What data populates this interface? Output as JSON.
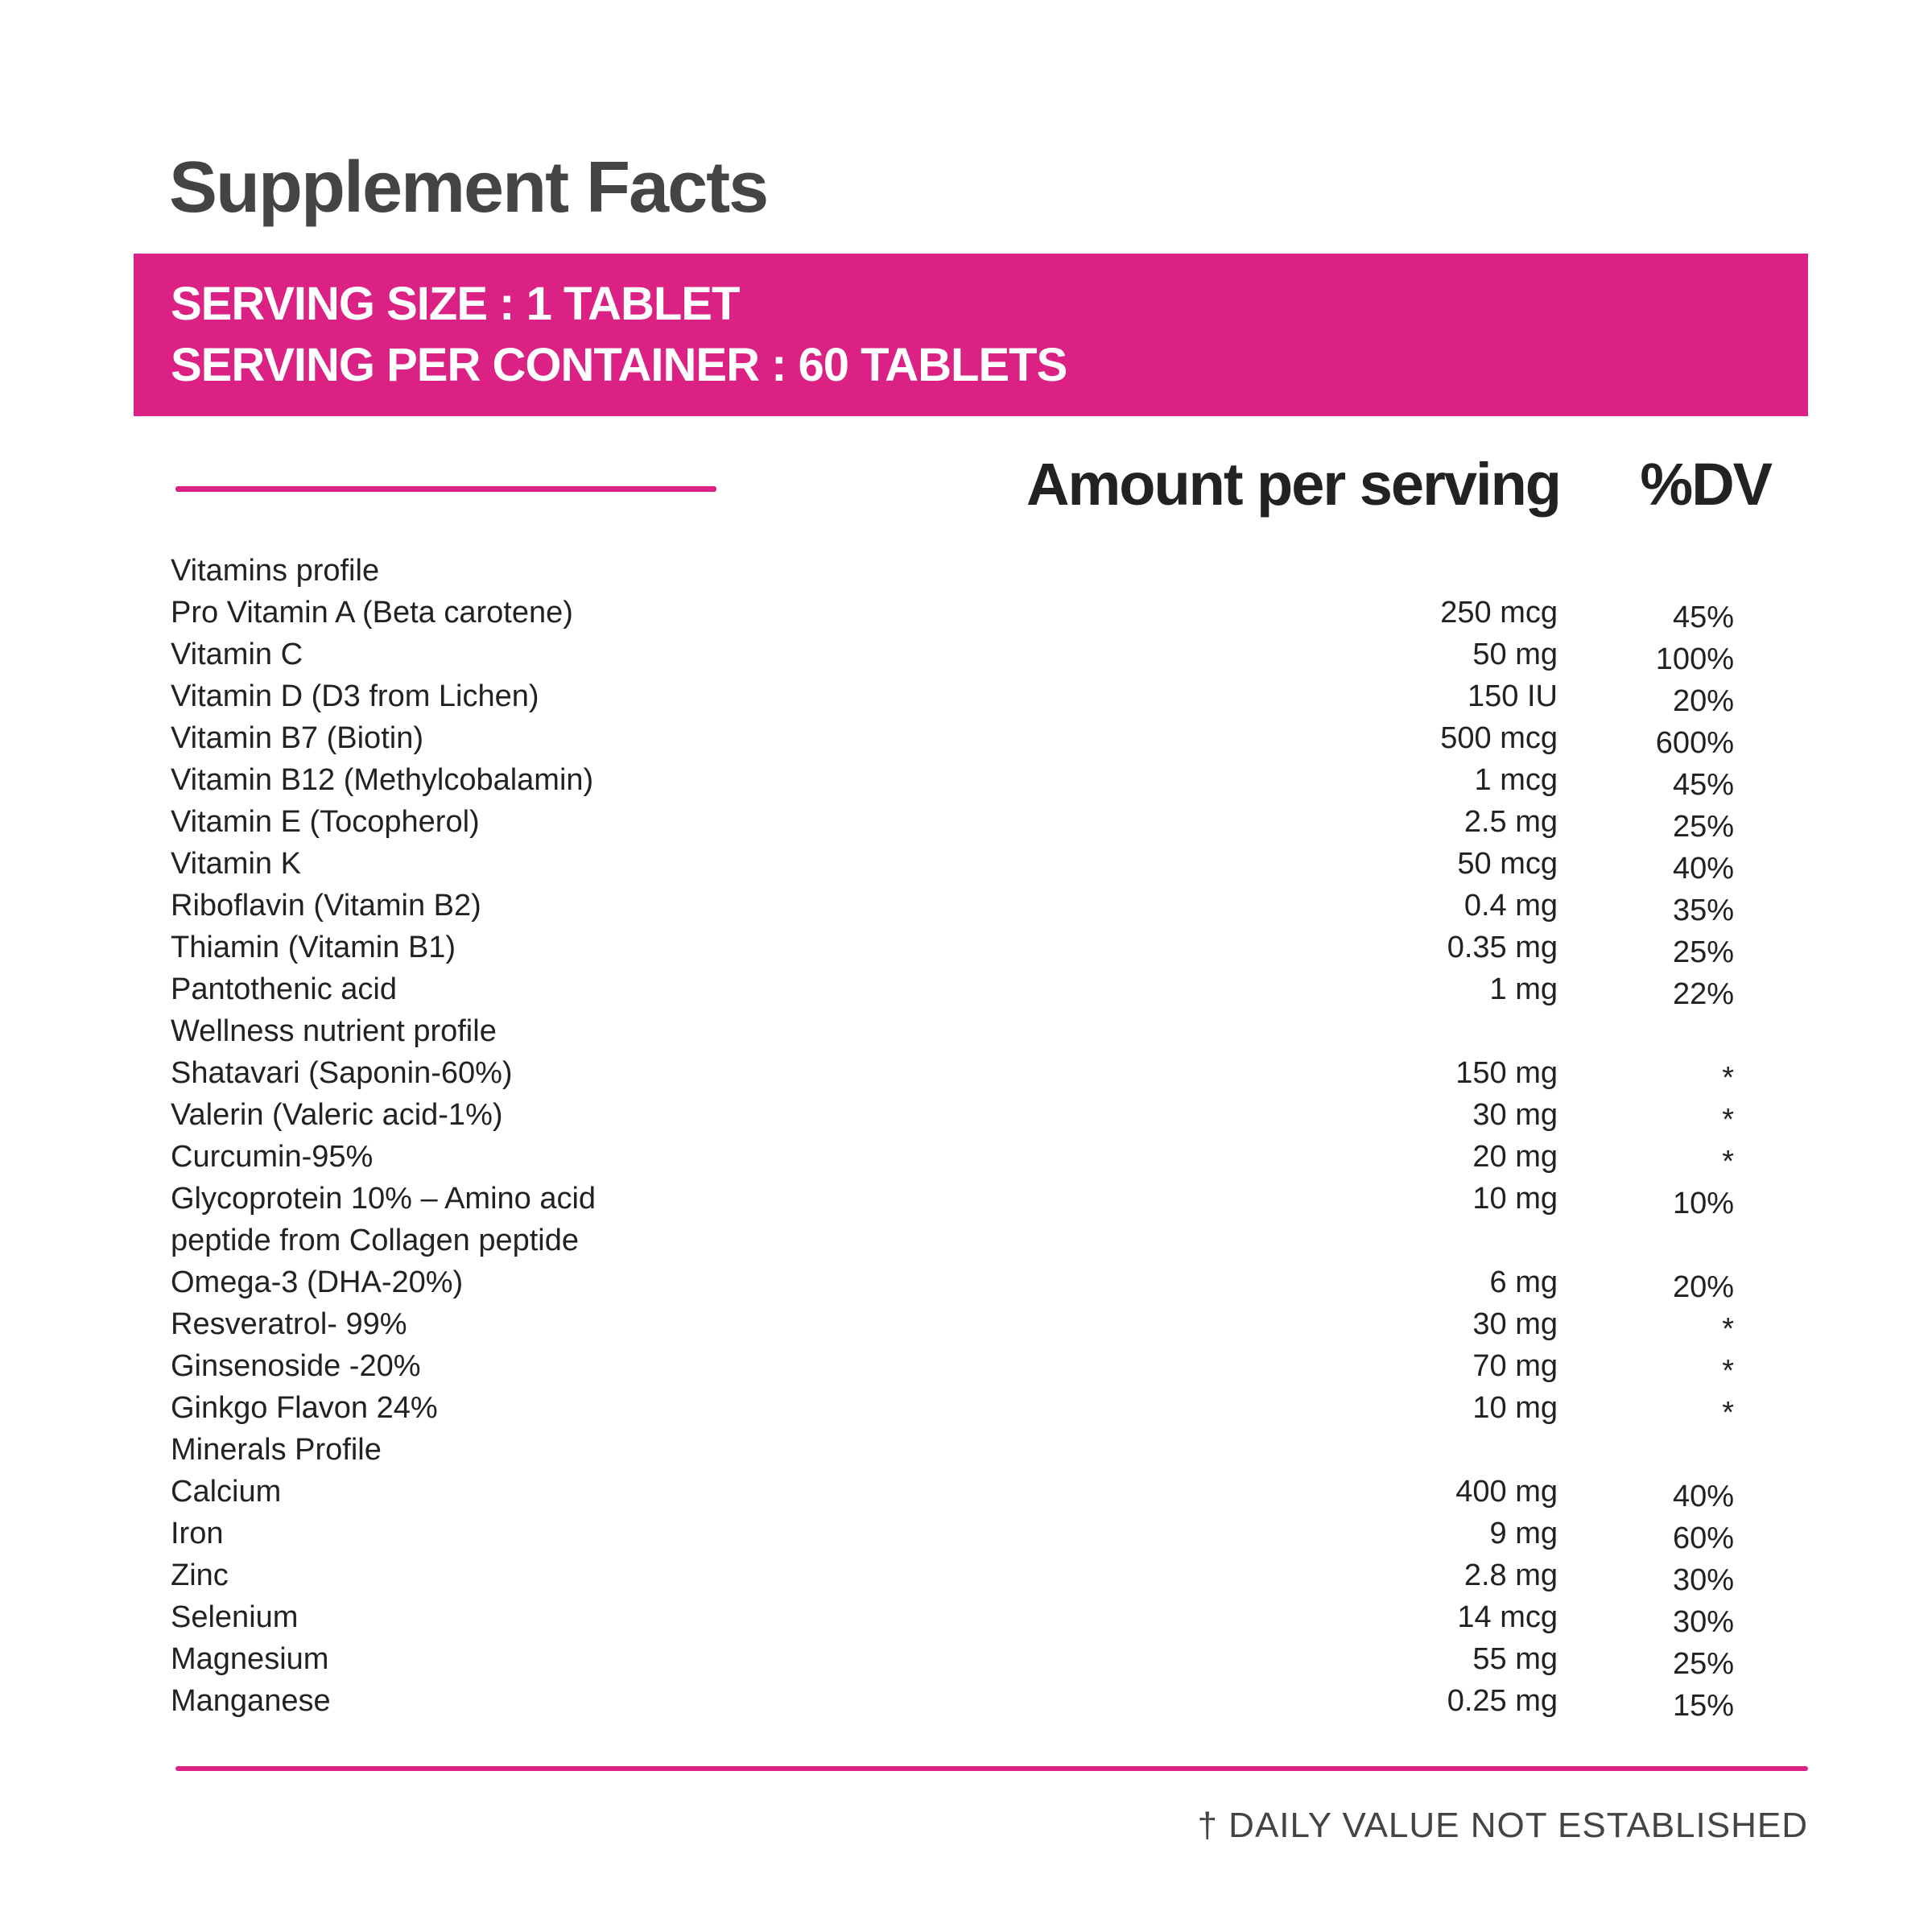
{
  "title": "Supplement Facts",
  "accent_color": "#DB2183",
  "serving": {
    "size": "SERVING SIZE : 1 TABLET",
    "per_container": "SERVING PER CONTAINER : 60 TABLETS"
  },
  "headers": {
    "amount": "Amount per serving",
    "dv": "%DV"
  },
  "rows": [
    {
      "name": "Vitamins profile",
      "amount": "",
      "dv": ""
    },
    {
      "name": "Pro Vitamin A (Beta carotene)",
      "amount": "250 mcg",
      "dv": "45%"
    },
    {
      "name": "Vitamin C",
      "amount": "50 mg",
      "dv": "100%"
    },
    {
      "name": "Vitamin D (D3 from Lichen)",
      "amount": "150 IU",
      "dv": "20%"
    },
    {
      "name": "Vitamin B7 (Biotin)",
      "amount": "500 mcg",
      "dv": "600%"
    },
    {
      "name": "Vitamin B12 (Methylcobalamin)",
      "amount": "1 mcg",
      "dv": "45%"
    },
    {
      "name": "Vitamin E (Tocopherol)",
      "amount": "2.5 mg",
      "dv": "25%"
    },
    {
      "name": "Vitamin K",
      "amount": "50 mcg",
      "dv": "40%"
    },
    {
      "name": "Riboflavin (Vitamin B2)",
      "amount": "0.4 mg",
      "dv": "35%"
    },
    {
      "name": "Thiamin (Vitamin B1)",
      "amount": "0.35 mg",
      "dv": "25%"
    },
    {
      "name": "Pantothenic acid",
      "amount": "1 mg",
      "dv": "22%"
    },
    {
      "name": "Wellness nutrient profile",
      "amount": "",
      "dv": ""
    },
    {
      "name": "Shatavari (Saponin-60%)",
      "amount": "150 mg",
      "dv": "*"
    },
    {
      "name": "Valerin (Valeric acid-1%)",
      "amount": "30 mg",
      "dv": "*"
    },
    {
      "name": "Curcumin-95%",
      "amount": "20 mg",
      "dv": "*"
    },
    {
      "name": "Glycoprotein 10% – Amino acid",
      "amount": "10 mg",
      "dv": "10%"
    },
    {
      "name": "peptide from Collagen peptide",
      "amount": "",
      "dv": ""
    },
    {
      "name": "Omega-3 (DHA-20%)",
      "amount": "6 mg",
      "dv": "20%"
    },
    {
      "name": "Resveratrol- 99%",
      "amount": "30 mg",
      "dv": "*"
    },
    {
      "name": "Ginsenoside -20%",
      "amount": "70 mg",
      "dv": "*"
    },
    {
      "name": "Ginkgo Flavon 24%",
      "amount": "10 mg",
      "dv": "*"
    },
    {
      "name": "Minerals Profile",
      "amount": "",
      "dv": ""
    },
    {
      "name": "Calcium",
      "amount": "400 mg",
      "dv": "40%"
    },
    {
      "name": "Iron",
      "amount": "9 mg",
      "dv": "60%"
    },
    {
      "name": "Zinc",
      "amount": "2.8 mg",
      "dv": "30%"
    },
    {
      "name": "Selenium",
      "amount": "14 mcg",
      "dv": "30%"
    },
    {
      "name": "Magnesium",
      "amount": "55 mg",
      "dv": "25%"
    },
    {
      "name": "Manganese",
      "amount": "0.25 mg",
      "dv": "15%"
    }
  ],
  "footer": "† DAILY VALUE NOT ESTABLISHED"
}
